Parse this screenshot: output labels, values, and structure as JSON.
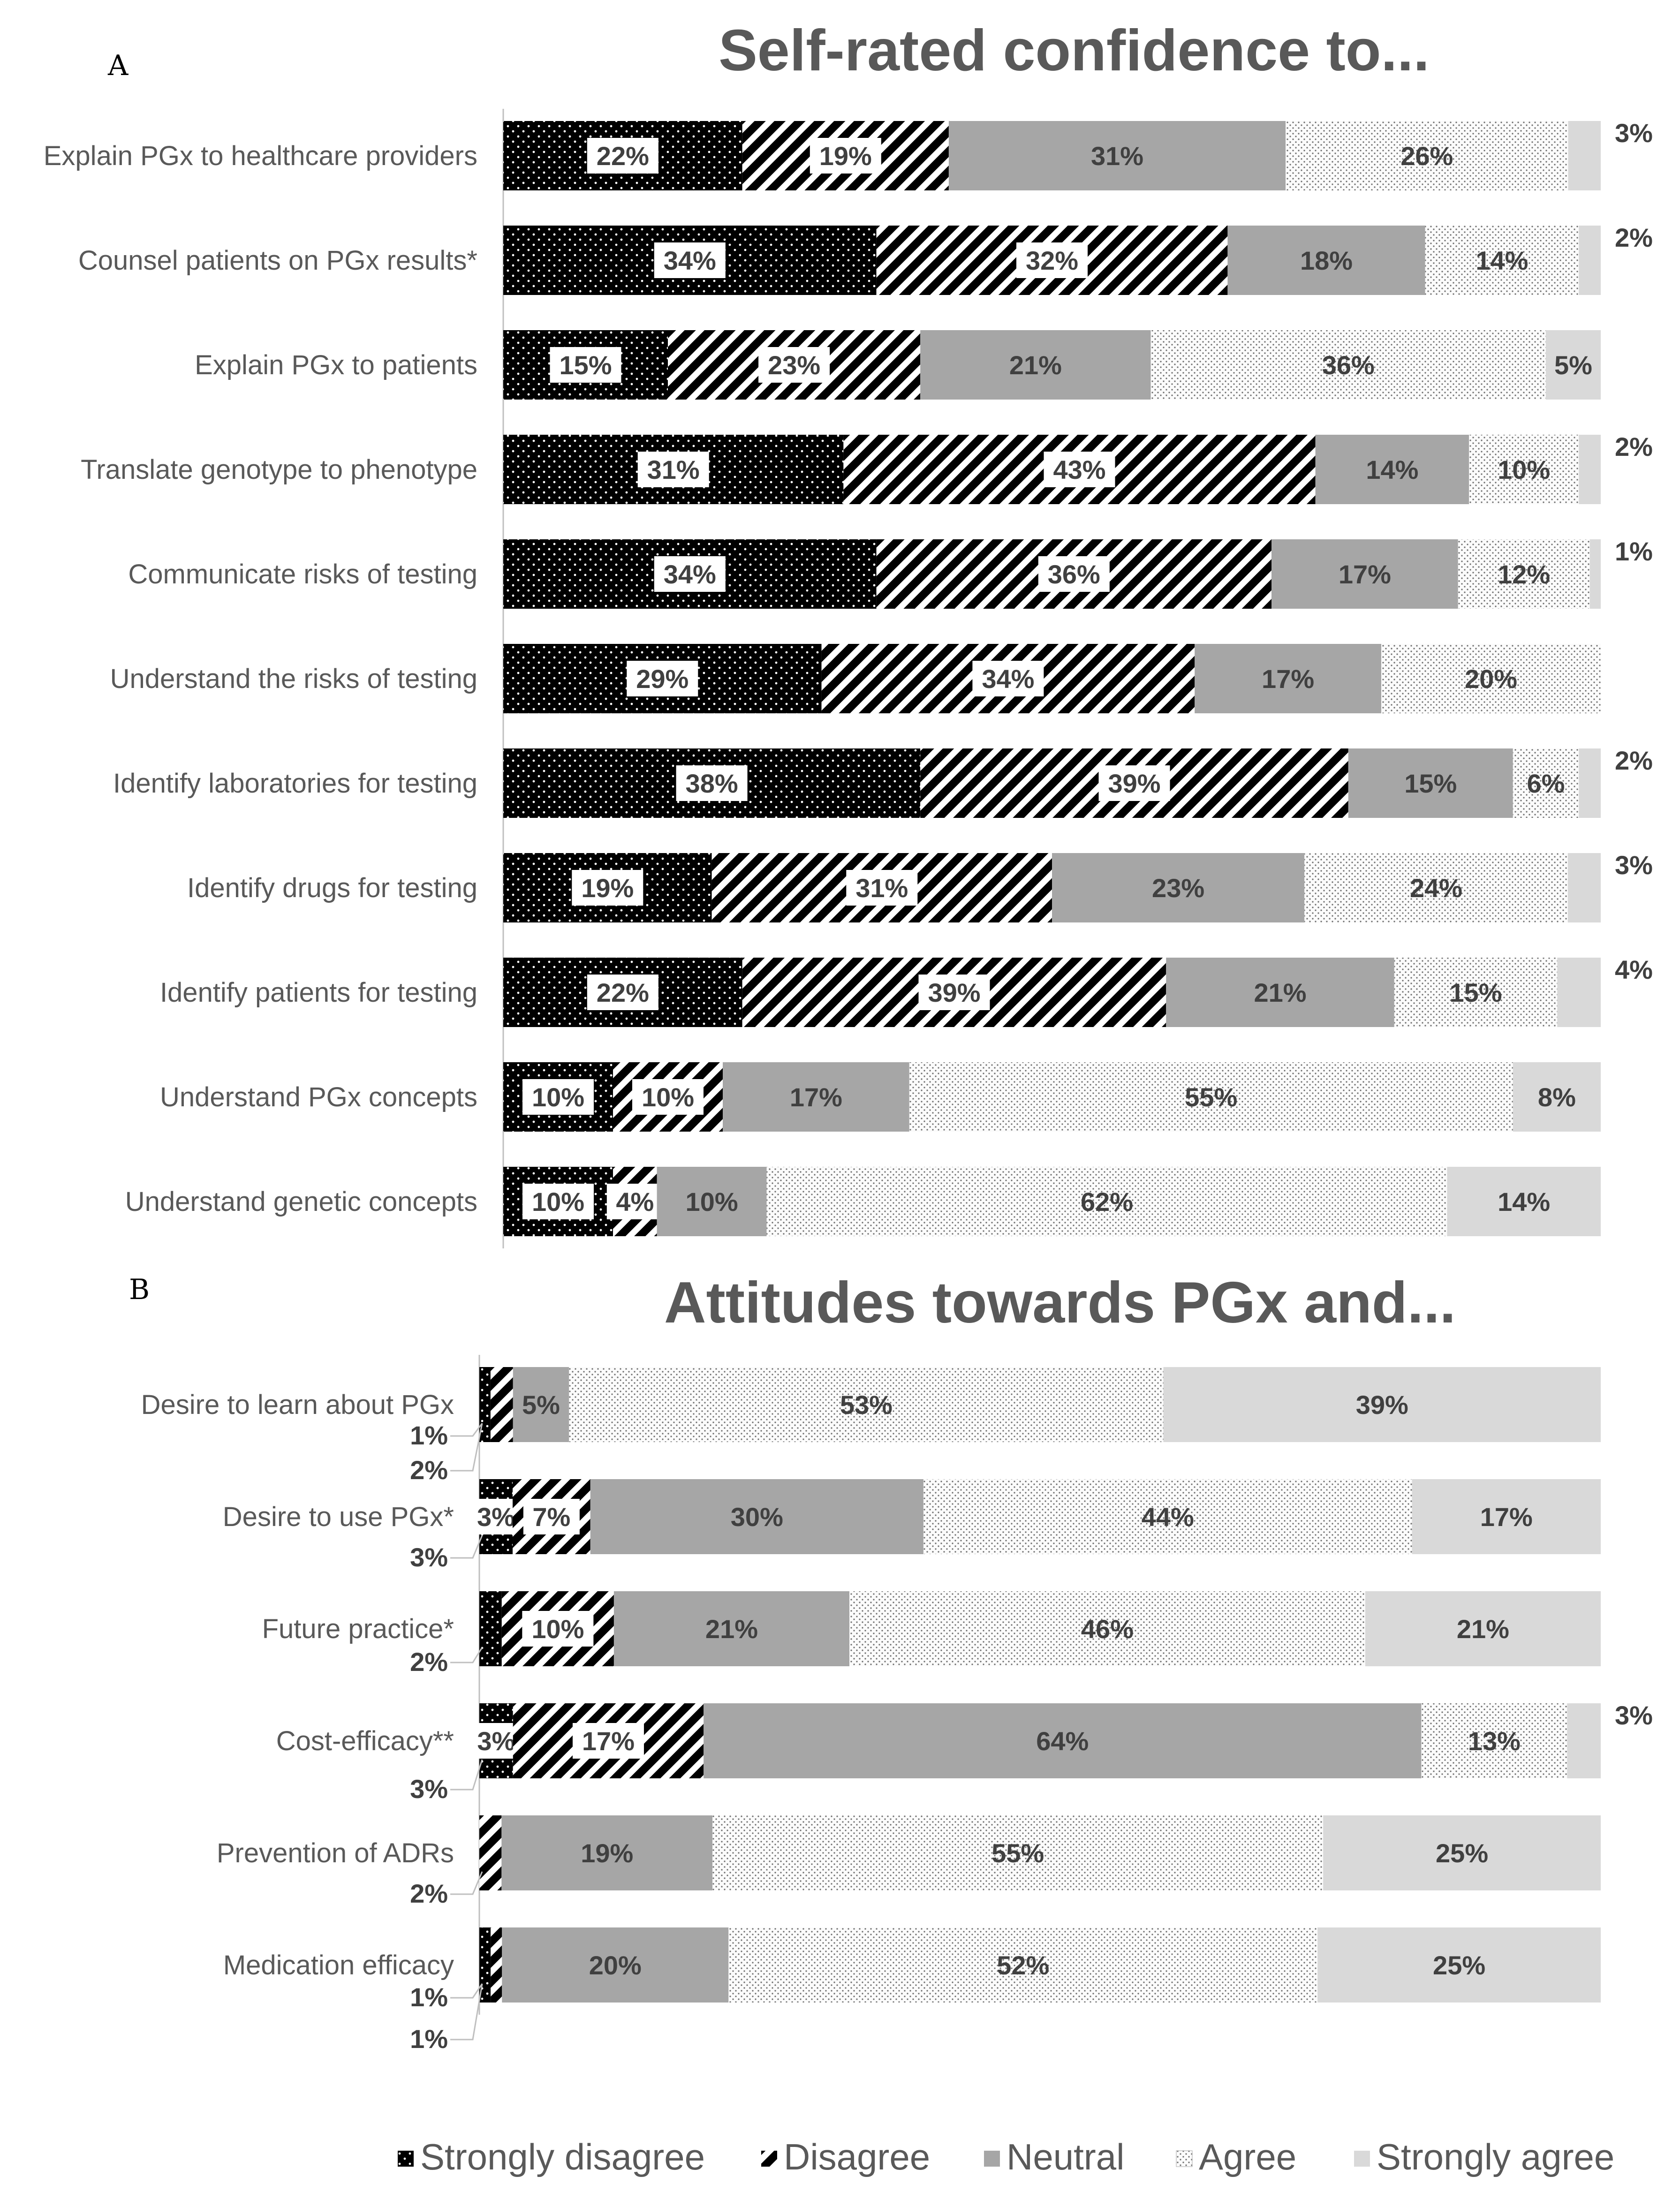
{
  "colors": {
    "strongly_disagree": "#000000",
    "disagree": "#000000",
    "neutral": "#a6a6a6",
    "agree": "#f2f2f2",
    "strongly_agree": "#d9d9d9",
    "text": "#595959"
  },
  "legend": [
    "Strongly disagree",
    "Disagree",
    "Neutral",
    "Agree",
    "Strongly agree"
  ],
  "chart_data": [
    {
      "panel": "A",
      "type": "bar",
      "orientation": "horizontal",
      "stacked": true,
      "title": "Self-rated confidence to...",
      "categories": [
        "Explain PGx to healthcare providers",
        "Counsel patients on PGx results*",
        "Explain PGx to patients",
        "Translate genotype to phenotype",
        "Communicate risks of testing",
        "Understand the risks of testing",
        "Identify laboratories for testing",
        "Identify drugs for testing",
        "Identify patients for testing",
        "Understand PGx concepts",
        "Understand genetic concepts"
      ],
      "series": [
        {
          "name": "Strongly disagree",
          "values": [
            22,
            34,
            15,
            31,
            34,
            29,
            38,
            19,
            22,
            10,
            10
          ]
        },
        {
          "name": "Disagree",
          "values": [
            19,
            32,
            23,
            43,
            36,
            34,
            39,
            31,
            39,
            10,
            4
          ]
        },
        {
          "name": "Neutral",
          "values": [
            31,
            18,
            21,
            14,
            17,
            17,
            15,
            23,
            21,
            17,
            10
          ]
        },
        {
          "name": "Agree",
          "values": [
            26,
            14,
            36,
            10,
            12,
            20,
            6,
            24,
            15,
            55,
            62
          ]
        },
        {
          "name": "Strongly agree",
          "values": [
            3,
            2,
            5,
            2,
            1,
            0,
            2,
            3,
            4,
            8,
            14
          ]
        }
      ],
      "labels": [
        [
          "22%",
          "19%",
          "31%",
          "26%",
          "3%"
        ],
        [
          "34%",
          "32%",
          "18%",
          "14%",
          "2%"
        ],
        [
          "15%",
          "23%",
          "21%",
          "36%",
          "5%"
        ],
        [
          "31%",
          "43%",
          "14%",
          "10%",
          "2%"
        ],
        [
          "34%",
          "36%",
          "17%",
          "12%",
          "1%"
        ],
        [
          "29%",
          "34%",
          "17%",
          "20%",
          ""
        ],
        [
          "38%",
          "39%",
          "15%",
          "6%",
          "2%"
        ],
        [
          "19%",
          "31%",
          "23%",
          "24%",
          "3%"
        ],
        [
          "22%",
          "39%",
          "21%",
          "15%",
          "4%"
        ],
        [
          "10%",
          "10%",
          "17%",
          "55%",
          "8%"
        ],
        [
          "10%",
          "4%",
          "10%",
          "62%",
          "14%"
        ]
      ],
      "xlim": [
        0,
        100
      ]
    },
    {
      "panel": "B",
      "type": "bar",
      "orientation": "horizontal",
      "stacked": true,
      "title": "Attitudes towards PGx and...",
      "categories": [
        "Desire to learn about PGx",
        "Desire to use PGx*",
        "Future practice*",
        "Cost-efficacy**",
        "Prevention of ADRs",
        "Medication efficacy"
      ],
      "series": [
        {
          "name": "Strongly disagree",
          "values": [
            1,
            3,
            2,
            3,
            0,
            1
          ]
        },
        {
          "name": "Disagree",
          "values": [
            2,
            7,
            10,
            17,
            2,
            1
          ]
        },
        {
          "name": "Neutral",
          "values": [
            5,
            30,
            21,
            64,
            19,
            20
          ]
        },
        {
          "name": "Agree",
          "values": [
            53,
            44,
            46,
            13,
            55,
            52
          ]
        },
        {
          "name": "Strongly agree",
          "values": [
            39,
            17,
            21,
            3,
            25,
            25
          ]
        }
      ],
      "labels": [
        [
          "1%",
          "2%",
          "5%",
          "53%",
          "39%"
        ],
        [
          "3%",
          "7%",
          "30%",
          "44%",
          "17%"
        ],
        [
          "2%",
          "10%",
          "21%",
          "46%",
          "21%"
        ],
        [
          "3%",
          "17%",
          "64%",
          "13%",
          "3%"
        ],
        [
          "",
          "2%",
          "19%",
          "55%",
          "25%"
        ],
        [
          "1%",
          "1%",
          "20%",
          "52%",
          "25%"
        ]
      ],
      "xlim": [
        0,
        100
      ]
    }
  ]
}
